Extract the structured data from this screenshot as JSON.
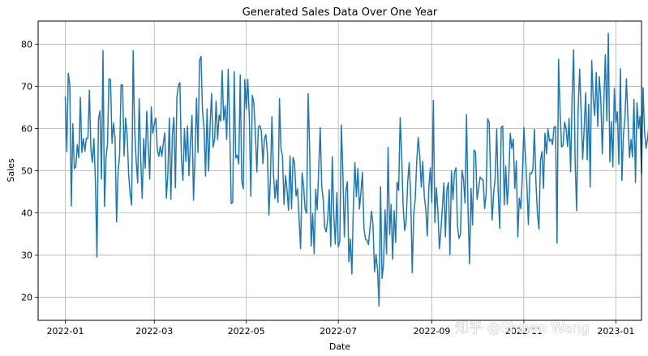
{
  "chart_data": {
    "type": "line",
    "title": "Generated Sales Data Over One Year",
    "xlabel": "Date",
    "ylabel": "Sales",
    "x_axis": "date",
    "x_start": "2022-01-01",
    "x_end": "2022-12-31",
    "xlim": [
      "2021-12-14",
      "2023-01-18"
    ],
    "ylim": [
      14.5,
      85.5
    ],
    "grid": true,
    "series_color": "#1f77b4",
    "xticks": [
      "2022-01",
      "2022-03",
      "2022-05",
      "2022-07",
      "2022-09",
      "2022-11",
      "2023-01"
    ],
    "xtick_dates": [
      "2022-01-01",
      "2022-03-01",
      "2022-05-01",
      "2022-07-01",
      "2022-09-01",
      "2022-11-01",
      "2023-01-01"
    ],
    "yticks": [
      20,
      30,
      40,
      50,
      60,
      70,
      80
    ],
    "series": [
      {
        "values": [
          67.6,
          54.5,
          73.1,
          70.4,
          41.6,
          61.1,
          50.5,
          51.0,
          56.2,
          53.1,
          67.4,
          54.3,
          57.6,
          54.6,
          57.7,
          57.7,
          69.1,
          55.0,
          52.0,
          57.6,
          47.3,
          29.5,
          62.1,
          64.2,
          48.0,
          78.5,
          41.5,
          52.9,
          56.4,
          71.8,
          71.6,
          56.5,
          61.3,
          57.8,
          37.8,
          49.6,
          53.5,
          70.4,
          70.3,
          53.5,
          62.5,
          58.6,
          49.3,
          44.5,
          41.9,
          78.5,
          59.5,
          52.4,
          47.1,
          67.1,
          52.7,
          43.4,
          57.6,
          50.6,
          64.1,
          56.1,
          48.0,
          65.1,
          58.9,
          60.9,
          62.5,
          55.0,
          53.4,
          55.8,
          53.4,
          56.5,
          59.0,
          43.5,
          49.2,
          62.5,
          43.2,
          58.4,
          62.7,
          45.9,
          67.5,
          70.2,
          70.9,
          52.8,
          47.7,
          60.0,
          52.2,
          60.6,
          48.8,
          56.8,
          63.1,
          43.0,
          53.3,
          67.2,
          54.3,
          76.1,
          77.1,
          64.0,
          60.0,
          48.7,
          64.7,
          49.9,
          60.6,
          68.3,
          55.6,
          57.5,
          66.5,
          57.4,
          63.2,
          61.8,
          73.8,
          62.0,
          65.4,
          57.4,
          74.1,
          60.4,
          42.2,
          42.5,
          73.5,
          53.0,
          53.7,
          51.6,
          72.7,
          47.6,
          45.7,
          71.6,
          64.6,
          71.7,
          62.9,
          43.9,
          67.9,
          66.0,
          59.1,
          49.7,
          60.3,
          60.7,
          59.4,
          51.7,
          57.5,
          58.6,
          54.2,
          39.5,
          48.2,
          62.8,
          49.4,
          43.4,
          47.8,
          42.5,
          67.1,
          55.2,
          53.5,
          42.0,
          48.8,
          45.5,
          40.6,
          53.5,
          40.9,
          53.1,
          51.9,
          44.0,
          45.7,
          38.5,
          31.5,
          49.5,
          46.3,
          40.9,
          39.9,
          68.3,
          55.1,
          32.1,
          39.8,
          30.3,
          45.6,
          40.7,
          50.2,
          60.2,
          46.4,
          43.1,
          36.5,
          35.5,
          38.6,
          45.5,
          32.0,
          53.3,
          39.6,
          32.6,
          44.8,
          31.9,
          33.3,
          60.8,
          50.0,
          34.3,
          45.2,
          47.4,
          28.4,
          33.8,
          25.5,
          41.8,
          51.9,
          43.8,
          50.5,
          40.9,
          44.9,
          49.6,
          36.3,
          33.8,
          33.5,
          32.5,
          36.4,
          40.4,
          37.1,
          26.0,
          30.1,
          26.6,
          17.9,
          46.2,
          24.4,
          27.9,
          40.7,
          30.3,
          55.5,
          34.8,
          42.0,
          29.0,
          40.5,
          33.0,
          47.3,
          45.3,
          62.6,
          53.6,
          41.4,
          35.8,
          38.1,
          47.4,
          51.9,
          43.8,
          25.8,
          39.6,
          43.3,
          52.3,
          57.9,
          53.5,
          46.1,
          52.2,
          43.9,
          40.9,
          34.5,
          46.0,
          50.7,
          42.4,
          66.7,
          37.7,
          45.9,
          40.7,
          31.5,
          35.7,
          41.3,
          47.1,
          34.3,
          45.6,
          47.2,
          30.1,
          49.9,
          43.1,
          49.6,
          50.7,
          37.0,
          33.9,
          34.9,
          50.1,
          47.9,
          42.3,
          63.3,
          40.6,
          27.9,
          45.8,
          37.1,
          54.9,
          54.3,
          43.2,
          45.7,
          48.5,
          48.0,
          47.8,
          41.0,
          44.5,
          62.3,
          61.6,
          47.6,
          38.3,
          44.8,
          48.3,
          59.9,
          44.9,
          36.3,
          60.3,
          60.6,
          41.9,
          51.1,
          42.0,
          48.3,
          58.9,
          55.3,
          57.5,
          45.8,
          52.3,
          34.3,
          43.5,
          41.0,
          48.6,
          60.3,
          53.8,
          46.8,
          37.2,
          49.5,
          49.3,
          50.3,
          59.8,
          47.4,
          39.9,
          36.1,
          52.4,
          54.5,
          45.8,
          58.9,
          54.0,
          59.9,
          57.0,
          57.5,
          56.2,
          60.3,
          60.5,
          32.8,
          76.4,
          64.2,
          55.6,
          56.1,
          61.5,
          60.0,
          55.7,
          62.4,
          49.7,
          67.5,
          78.7,
          52.2,
          40.5,
          64.6,
          74.1,
          63.5,
          52.7,
          60.1,
          68.5,
          52.6,
          65.8,
          46.1,
          76.2,
          67.0,
          63.1,
          73.3,
          60.5,
          72.3,
          67.1,
          54.0,
          65.8,
          77.5,
          61.8,
          82.6,
          52.1,
          61.7,
          50.9,
          69.5,
          61.4,
          64.0,
          51.5,
          74.2,
          47.7,
          58.4,
          62.4,
          71.8,
          62.1,
          53.1,
          57.4,
          53.2,
          66.9,
          47.2,
          66.1,
          60.1,
          62.9,
          49.2,
          69.7,
          59.4,
          55.3,
          57.6,
          61.1,
          52.6,
          51.4,
          57.4,
          57.5,
          42.5,
          54.6,
          53.8,
          56.2,
          47.2,
          43.5,
          50.9,
          55.8,
          61.8,
          51.0,
          61.0,
          60.4,
          57.9,
          53.1,
          59.1,
          57.9,
          56.6,
          52.9,
          49.3,
          51.4,
          55.8,
          60.3,
          53.2,
          63.5,
          56.2,
          53.3,
          50.0,
          52.6,
          46.4,
          56.4,
          80.9,
          51.6,
          66.8,
          67.2,
          45.4,
          64.6,
          64.9,
          47.5,
          55.5,
          30.5,
          59.7,
          39.2,
          47.5,
          53.1,
          62.9,
          72.6,
          59.7,
          50.0,
          49.6,
          43.1,
          51.2,
          49.2,
          50.8,
          55.6,
          59.6,
          53.9,
          52.2,
          39.2,
          57.3,
          66.9,
          46.1,
          46.6,
          47.3,
          46.7,
          33.9,
          46.3,
          45.0,
          44.8,
          57.9,
          58.2,
          51.0,
          59.8,
          51.3,
          49.9
        ]
      }
    ]
  },
  "watermark": "知乎 @Shawn Wang"
}
